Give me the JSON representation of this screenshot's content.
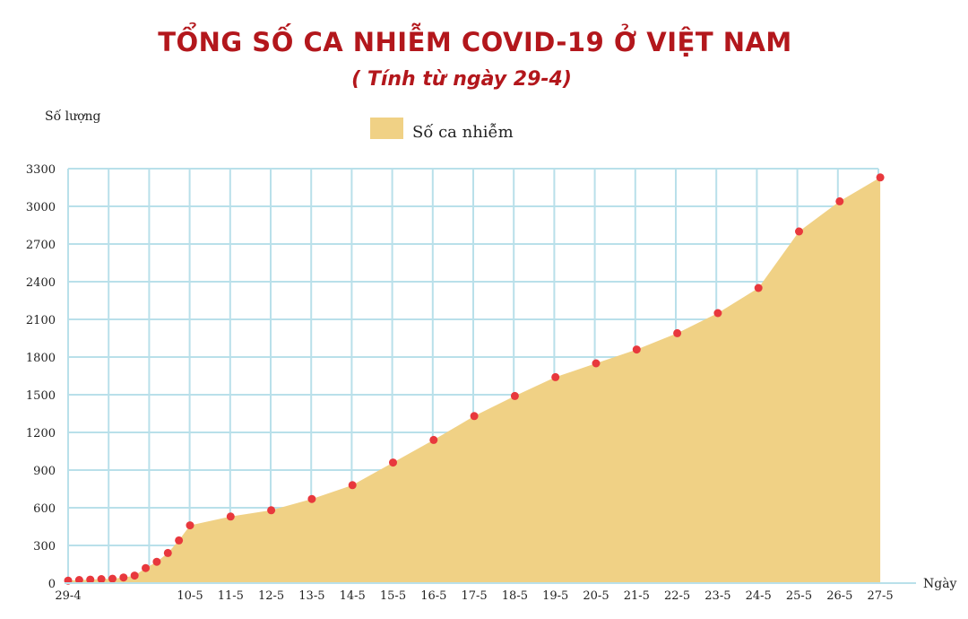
{
  "header": {
    "title": "TỔNG SỐ CA NHIỄM COVID-19 Ở VIỆT NAM",
    "subtitle": "( Tính từ ngày 29-4)"
  },
  "chart_data": {
    "type": "area",
    "ylabel": "Số lượng",
    "xlabel": "Ngày",
    "legend": {
      "label": "Số ca nhiễm",
      "placement": "top-center"
    },
    "ylim": [
      0,
      3300
    ],
    "yticks": [
      0,
      300,
      600,
      900,
      1200,
      1500,
      1800,
      2100,
      2400,
      2700,
      3000,
      3300
    ],
    "grid": true,
    "colors": {
      "fill": "#f0d185",
      "point": "#e8383d",
      "grid": "#b9e0ea"
    },
    "x_tick_labels": [
      "29-4",
      "10-5",
      "11-5",
      "12-5",
      "13-5",
      "14-5",
      "15-5",
      "16-5",
      "17-5",
      "18-5",
      "19-5",
      "20-5",
      "21-5",
      "22-5",
      "23-5",
      "24-5",
      "25-5",
      "26-5",
      "27-5"
    ],
    "x": [
      "29-4",
      "30-4",
      "1-5",
      "2-5",
      "3-5",
      "4-5",
      "5-5",
      "6-5",
      "7-5",
      "8-5",
      "9-5",
      "10-5",
      "11-5",
      "12-5",
      "13-5",
      "14-5",
      "15-5",
      "16-5",
      "17-5",
      "18-5",
      "19-5",
      "20-5",
      "21-5",
      "22-5",
      "23-5",
      "24-5",
      "25-5",
      "26-5",
      "27-5"
    ],
    "series": [
      {
        "name": "Số ca nhiễm",
        "values": [
          20,
          25,
          28,
          32,
          35,
          45,
          60,
          120,
          170,
          240,
          340,
          460,
          530,
          580,
          670,
          780,
          960,
          1140,
          1330,
          1490,
          1640,
          1750,
          1860,
          1990,
          2150,
          2350,
          2800,
          3040,
          3230
        ]
      }
    ]
  }
}
